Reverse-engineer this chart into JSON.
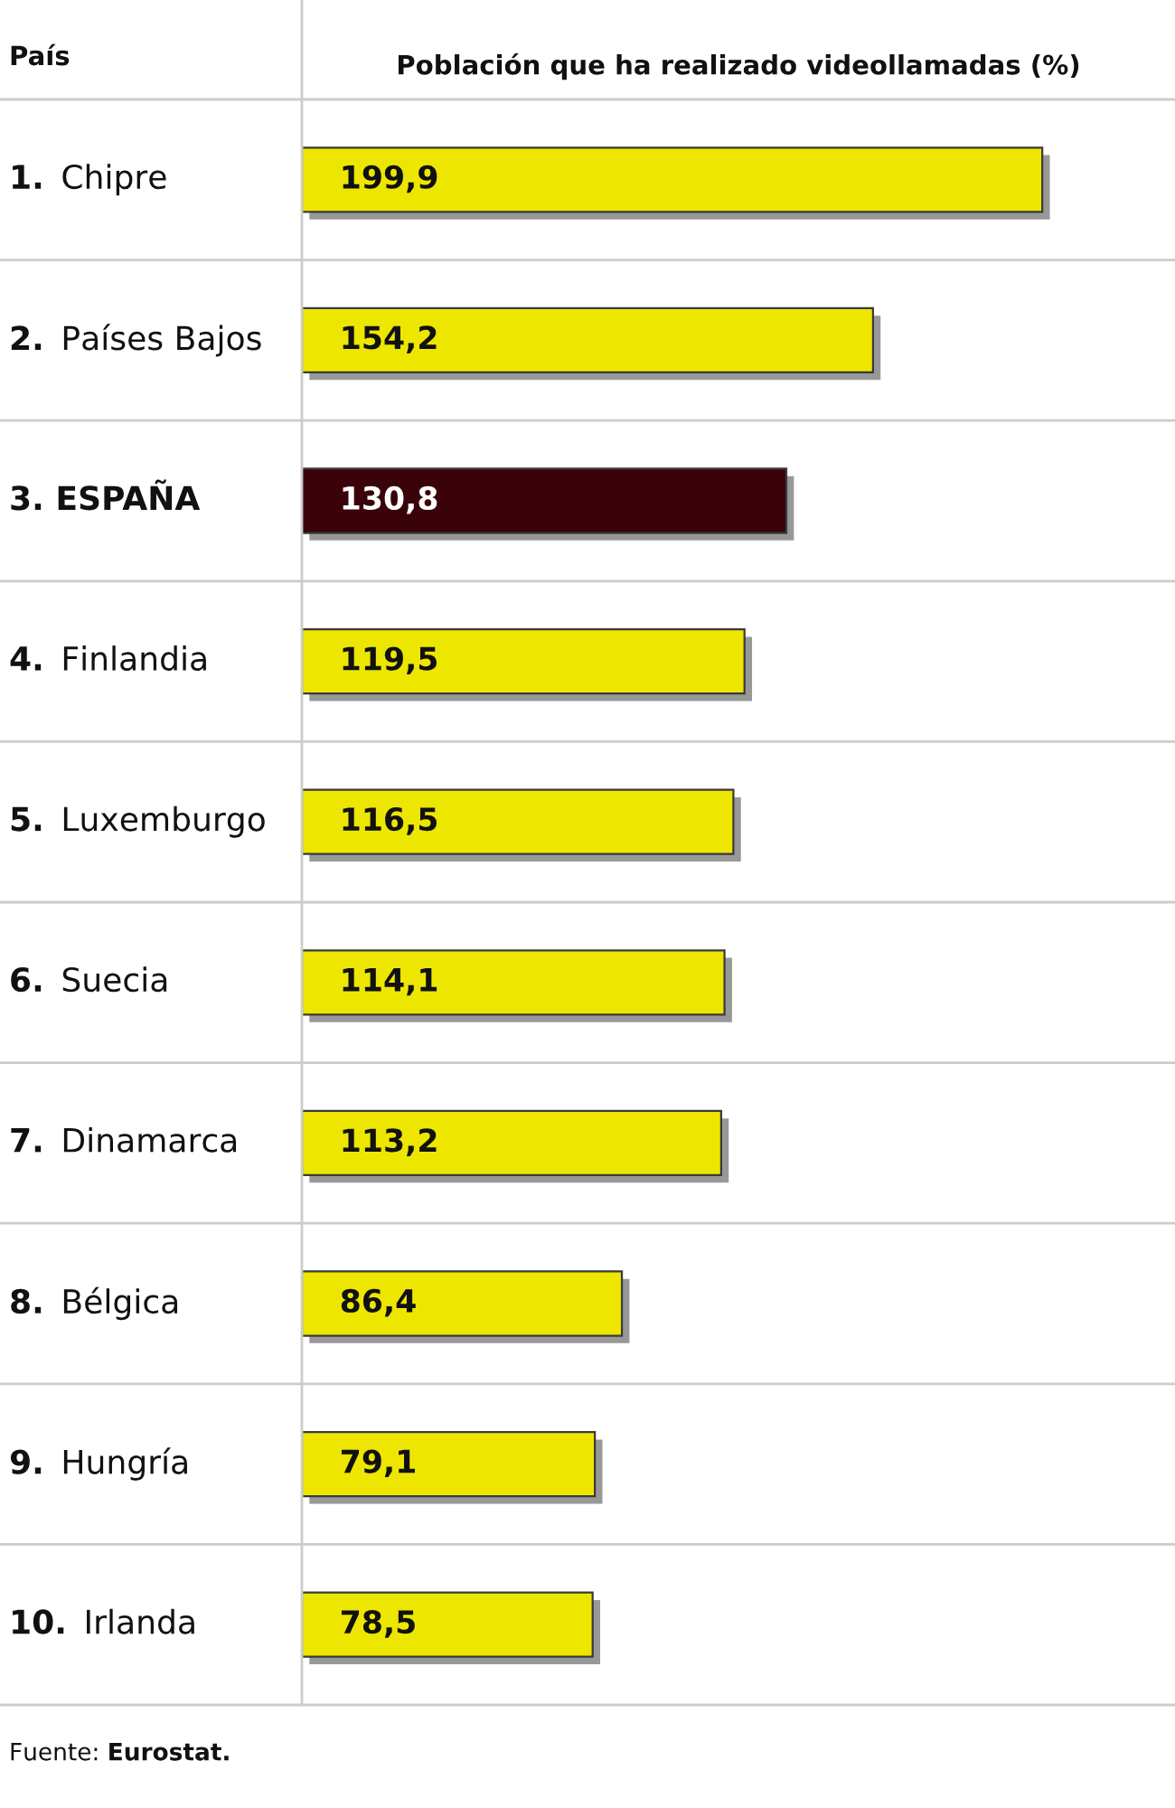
{
  "chart_data": {
    "type": "bar",
    "orientation": "horizontal",
    "ylabel": "País",
    "xlabel": "Población que ha realizado videollamadas (%)",
    "categories": [
      "1. Chipre",
      "2. Países Bajos",
      "3. ESPAÑA",
      "4. Finlandia",
      "5. Luxemburgo",
      "6. Suecia",
      "7. Dinamarca",
      "8. Bélgica",
      "9. Hungría",
      "10. Irlanda"
    ],
    "values": [
      199.9,
      154.2,
      130.8,
      119.5,
      116.5,
      114.1,
      113.2,
      86.4,
      79.1,
      78.5
    ],
    "value_labels": [
      "199,9",
      "154,2",
      "130,8",
      "119,5",
      "116,5",
      "114,1",
      "113,2",
      "86,4",
      "79,1",
      "78,5"
    ],
    "color": "#ede600",
    "colors": [
      "#ede600",
      "#ede600",
      "#3a0209",
      "#ede600",
      "#ede600",
      "#ede600",
      "#ede600",
      "#ede600",
      "#ede600",
      "#ede600"
    ],
    "grid": "y",
    "annotations": [
      "Fuente: Eurostat."
    ]
  }
}
